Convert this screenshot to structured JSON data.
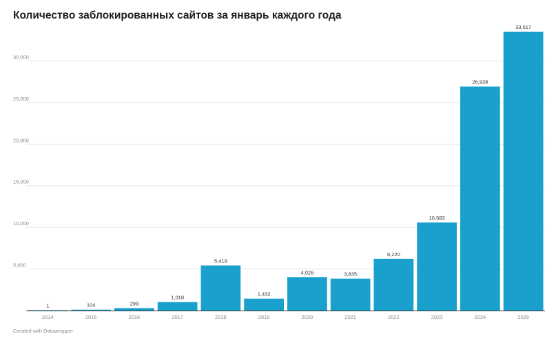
{
  "title": "Количество заблокированных сайтов за январь каждого года",
  "footer": "Created with Datawrapper",
  "chart_data": {
    "type": "bar",
    "title": "Количество заблокированных сайтов за январь каждого года",
    "categories": [
      "2014",
      "2015",
      "2016",
      "2017",
      "2018",
      "2019",
      "2020",
      "2021",
      "2022",
      "2023",
      "2024",
      "2025"
    ],
    "values": [
      1,
      104,
      299,
      1018,
      5419,
      1432,
      4026,
      3835,
      6220,
      10583,
      26928,
      33517
    ],
    "value_labels": [
      "1",
      "104",
      "299",
      "1,018",
      "5,419",
      "1,432",
      "4,026",
      "3,835",
      "6,220",
      "10,583",
      "26,928",
      "33,517"
    ],
    "yticks": [
      5000,
      10000,
      15000,
      20000,
      25000,
      30000
    ],
    "ytick_labels": [
      "5,000",
      "10,000",
      "15,000",
      "20,000",
      "25,000",
      "30,000"
    ],
    "xlabel": "",
    "ylabel": "",
    "ylim": [
      0,
      33517
    ],
    "bar_color": "#1aa0cd",
    "grid": true
  }
}
